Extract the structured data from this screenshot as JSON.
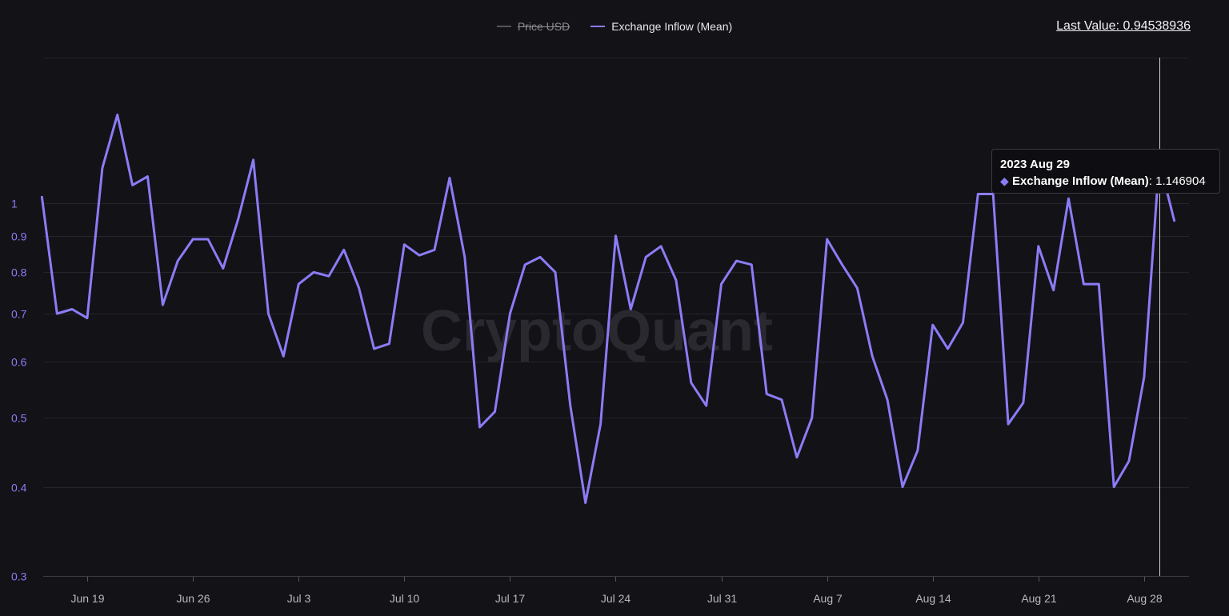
{
  "chart_data": {
    "type": "line",
    "title": "",
    "legend": [
      {
        "name": "Price USD",
        "color": "#55555b",
        "visible": false
      },
      {
        "name": "Exchange Inflow (Mean)",
        "color": "#8b7cf6",
        "visible": true
      }
    ],
    "last_value_label": "Last Value: 0.94538936",
    "tooltip": {
      "date": "2023 Aug 29",
      "series": "Exchange Inflow (Mean)",
      "value_text": ": 1.146904",
      "marker": "◆"
    },
    "watermark": "CryptoQuant",
    "y_scale": "log",
    "ylim": [
      0.3,
      1.6
    ],
    "y_ticks": [
      0.3,
      0.4,
      0.5,
      0.6,
      0.7,
      0.8,
      0.9,
      1
    ],
    "y_tick_labels": [
      "0.3",
      "0.4",
      "0.5",
      "0.6",
      "0.7",
      "0.8",
      "0.9",
      "1"
    ],
    "x_start_day_offset": -3,
    "x_ticks": [
      {
        "day": 0,
        "label": "Jun 19"
      },
      {
        "day": 7,
        "label": "Jun 26"
      },
      {
        "day": 14,
        "label": "Jul 3"
      },
      {
        "day": 21,
        "label": "Jul 10"
      },
      {
        "day": 28,
        "label": "Jul 17"
      },
      {
        "day": 35,
        "label": "Jul 24"
      },
      {
        "day": 42,
        "label": "Jul 31"
      },
      {
        "day": 49,
        "label": "Aug 7"
      },
      {
        "day": 56,
        "label": "Aug 14"
      },
      {
        "day": 63,
        "label": "Aug 21"
      },
      {
        "day": 70,
        "label": "Aug 28"
      }
    ],
    "series": [
      {
        "name": "Exchange Inflow (Mean)",
        "color": "#8b7cf6",
        "start_date": "2023-06-16",
        "values": [
          1.02,
          0.7,
          0.71,
          0.69,
          1.12,
          1.33,
          1.06,
          1.09,
          0.72,
          0.83,
          0.89,
          0.89,
          0.81,
          0.95,
          1.15,
          0.7,
          0.61,
          0.77,
          0.8,
          0.79,
          0.86,
          0.76,
          0.625,
          0.635,
          0.875,
          0.845,
          0.86,
          1.085,
          0.84,
          0.485,
          0.51,
          0.7,
          0.82,
          0.84,
          0.8,
          0.52,
          0.38,
          0.49,
          0.9,
          0.71,
          0.84,
          0.87,
          0.78,
          0.56,
          0.52,
          0.77,
          0.83,
          0.82,
          0.54,
          0.53,
          0.44,
          0.5,
          0.89,
          0.82,
          0.76,
          0.61,
          0.53,
          0.4,
          0.45,
          0.675,
          0.625,
          0.68,
          1.03,
          1.03,
          0.49,
          0.525,
          0.87,
          0.755,
          1.015,
          0.77,
          0.77,
          0.4,
          0.435,
          0.57,
          1.146904,
          0.945
        ]
      }
    ],
    "highlight_day": 71
  }
}
